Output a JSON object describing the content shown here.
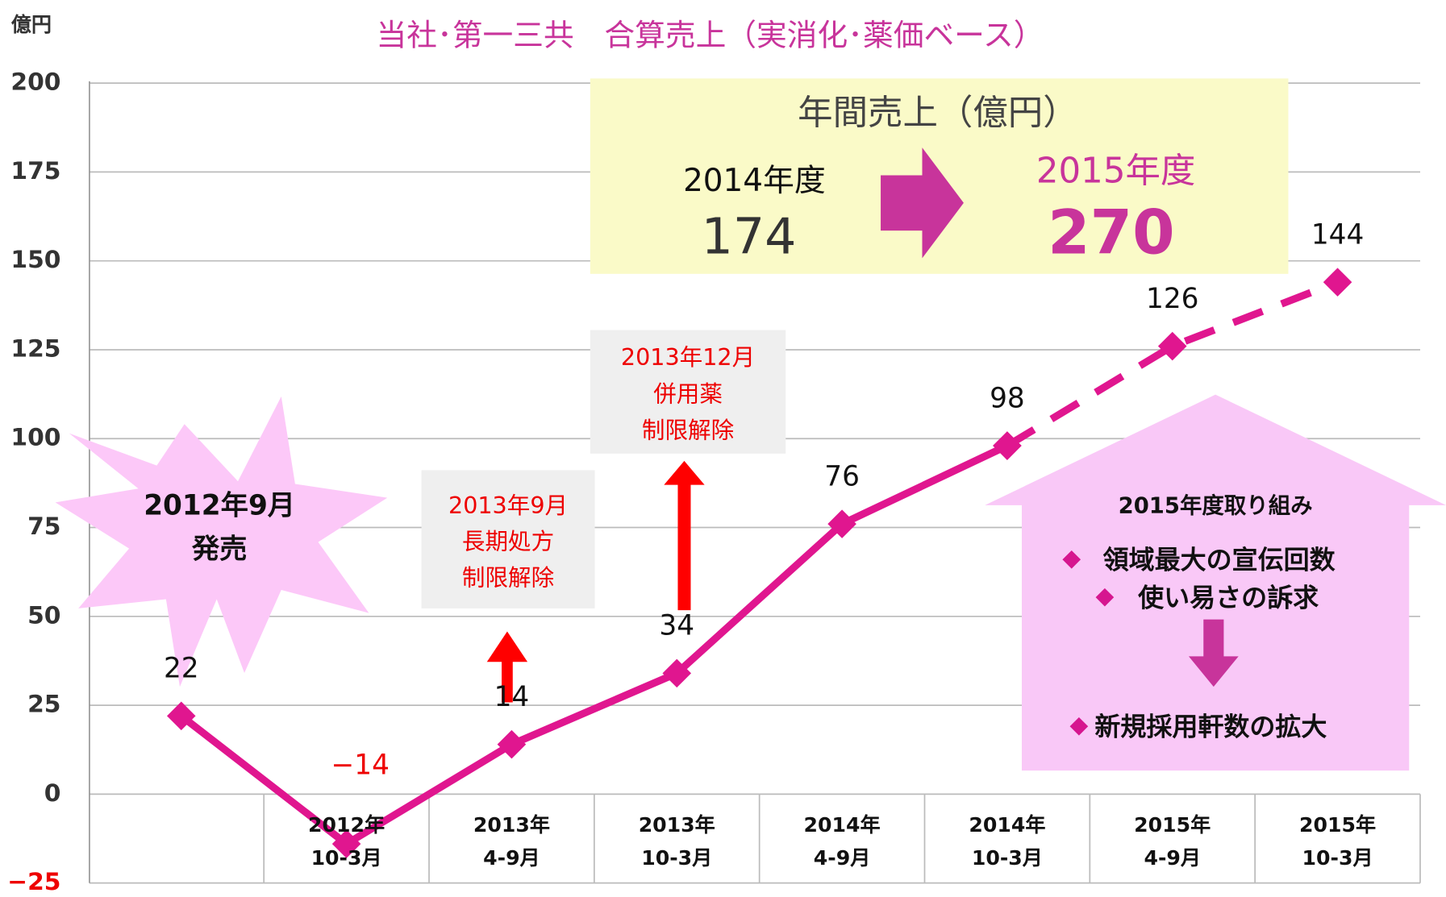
{
  "chart_data": {
    "type": "line",
    "title": "当社･第一三共　合算売上（実消化･薬価ベース）",
    "y_unit": "億円",
    "categories": [
      null,
      [
        "2012年",
        "10-3月"
      ],
      [
        "2013年",
        "4-9月"
      ],
      [
        "2013年",
        "10-3月"
      ],
      [
        "2014年",
        "4-9月"
      ],
      [
        "2014年",
        "10-3月"
      ],
      [
        "2015年",
        "4-9月"
      ],
      [
        "2015年",
        "10-3月"
      ]
    ],
    "series": [
      {
        "color": "#e0168f",
        "dashed": false,
        "values": [
          22,
          -14,
          14,
          34,
          76,
          98,
          null,
          null
        ],
        "value_labels": [
          "22",
          "−14",
          "14",
          "34",
          "76",
          "98",
          null,
          null
        ]
      },
      {
        "color": "#e0168f",
        "dashed": true,
        "values": [
          null,
          null,
          null,
          null,
          null,
          98,
          126,
          144
        ]
      }
    ],
    "ylim": [
      -25,
      200
    ],
    "yticks": [
      {
        "value": -25,
        "label": "−25"
      },
      0,
      25,
      50,
      75,
      100,
      125,
      150,
      175,
      200
    ],
    "grid": true,
    "annotations": {
      "annual": {
        "title": "年間売上（億円）",
        "from_label": "2014年度",
        "from_value": "174",
        "to_label": "2015年度",
        "to_value": "270"
      },
      "launch": [
        "2012年9月",
        "発売"
      ],
      "event1": [
        "2013年9月",
        "長期処方",
        "制限解除"
      ],
      "event2": [
        "2013年12月",
        "併用薬",
        "制限解除"
      ],
      "plan": {
        "title": "2015年度取り組み",
        "items": [
          "領域最大の宣伝回数",
          "使い易さの訴求"
        ],
        "result": "新規採用軒数の拡大"
      }
    }
  }
}
